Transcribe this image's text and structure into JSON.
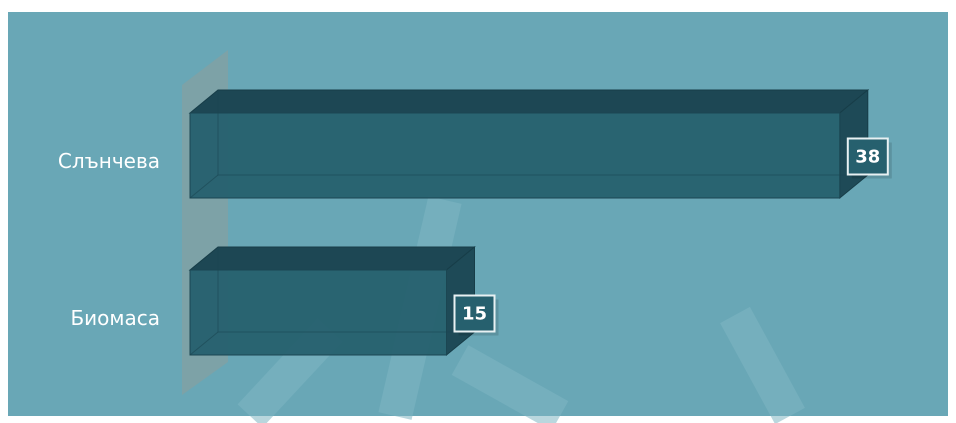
{
  "chart_data": {
    "type": "bar",
    "orientation": "horizontal",
    "categories": [
      "Слънчева",
      "Биомаса"
    ],
    "values": [
      38,
      15
    ],
    "color": "#26606e"
  }
}
